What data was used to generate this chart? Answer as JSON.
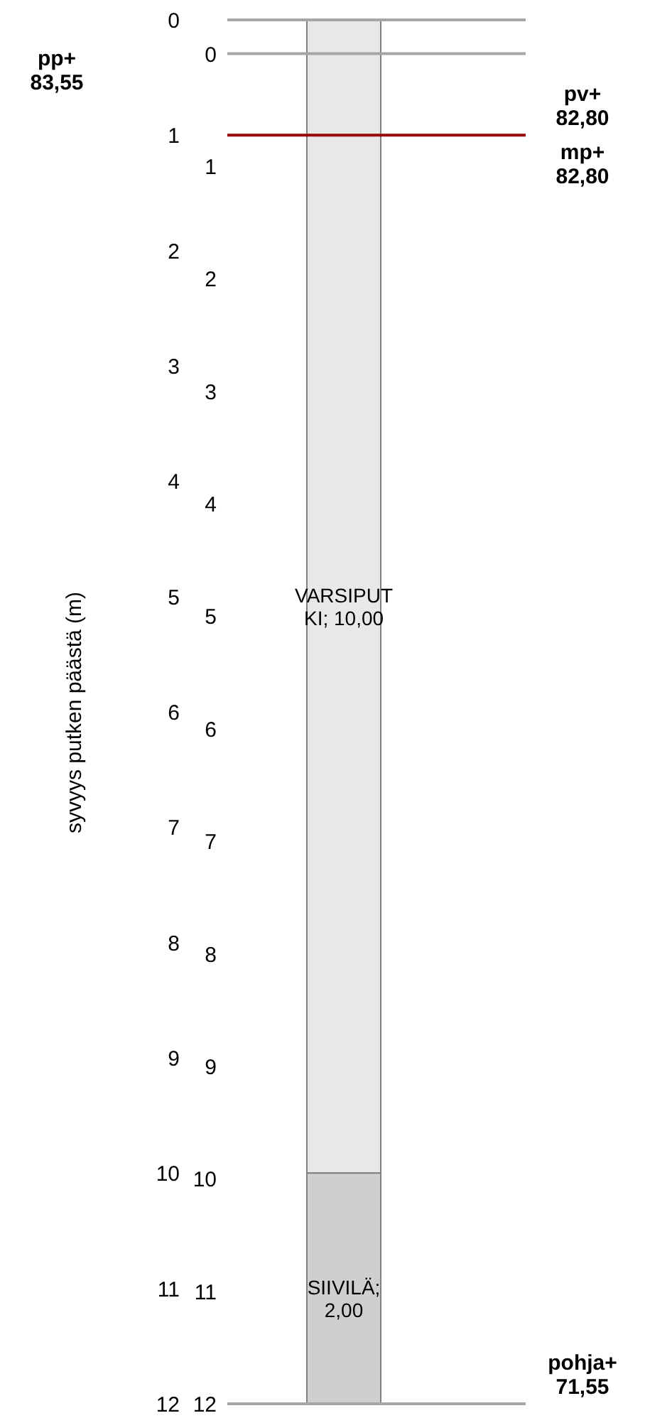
{
  "chart_data": {
    "type": "bar",
    "stacked": true,
    "categories": [
      null
    ],
    "ylabel": "syvyys putken päästä (m)",
    "ylim": [
      12,
      0
    ],
    "yticks": [
      0,
      1,
      2,
      3,
      4,
      5,
      6,
      7,
      8,
      9,
      10,
      11,
      12
    ],
    "y2lim": [
      12,
      -0.3
    ],
    "y2ticks": [
      0,
      1,
      2,
      3,
      4,
      5,
      6,
      7,
      8,
      9,
      10,
      11,
      12
    ],
    "series": [
      {
        "color": "#e8e8e8",
        "values": [
          10
        ],
        "value_labels": [
          "VARSIPUTKI; 10,00"
        ]
      },
      {
        "color": "#cfcfcf",
        "values": [
          2
        ],
        "value_labels": [
          "SIIVILÄ; 2,00"
        ]
      }
    ],
    "ref_lines": [
      {
        "axis": "y",
        "value": 0,
        "color": "#a6a6a6"
      },
      {
        "axis": "y2",
        "value": 0,
        "color": "#a6a6a6"
      },
      {
        "axis": "y",
        "value": 1,
        "label": "pv+ 82,80",
        "color": "#990000"
      },
      {
        "axis": "y",
        "value": 12,
        "label": "pohja+ 71,55",
        "color": "#a6a6a6"
      }
    ],
    "annotations": [
      "pp+ 83,55",
      "mp+ 82,80"
    ]
  }
}
